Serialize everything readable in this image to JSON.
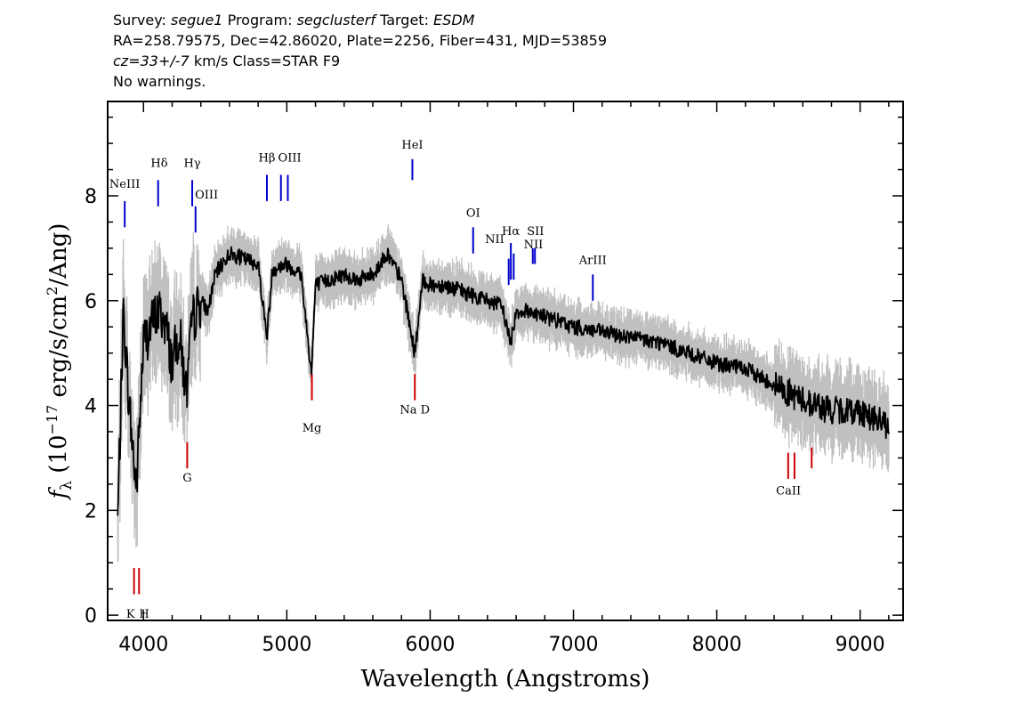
{
  "header": {
    "survey_label": "Survey:",
    "survey": "segue1",
    "program_label": "Program:",
    "program": "segclusterf",
    "target_label": "Target:",
    "target": "ESDM",
    "line2": "RA=258.79575, Dec=42.86020, Plate=2256, Fiber=431, MJD=53859",
    "cz": "cz=33+/-7",
    "line3_rest": "km/s Class=STAR F9",
    "line4": "No warnings."
  },
  "chart_data": {
    "type": "line",
    "xlabel": "Wavelength (Angstroms)",
    "ylabel": "f_λ (10^-17 erg/s/cm^2/Ang)",
    "ylabel_parts": {
      "f": "f",
      "sub": "λ",
      "a": " (10",
      "sup1": "−17",
      "b": " erg/s/cm",
      "sup2": "2",
      "c": "/Ang)"
    },
    "xlim": [
      3750,
      9300
    ],
    "ylim": [
      -0.1,
      9.8
    ],
    "xticks": [
      4000,
      5000,
      6000,
      7000,
      8000,
      9000
    ],
    "yticks": [
      0,
      2,
      4,
      6,
      8
    ],
    "grid": false,
    "colors": {
      "flux": "#000000",
      "error_band": "#c0c0c0",
      "emission": "#0000cc",
      "absorption": "#cc0000"
    },
    "series": [
      {
        "name": "flux",
        "x": [
          3820,
          3860,
          3900,
          3950,
          4000,
          4050,
          4100,
          4150,
          4200,
          4250,
          4300,
          4340,
          4400,
          4450,
          4500,
          4600,
          4700,
          4800,
          4861,
          4900,
          5000,
          5100,
          5172,
          5200,
          5300,
          5400,
          5500,
          5600,
          5700,
          5800,
          5893,
          5950,
          6000,
          6100,
          6200,
          6300,
          6400,
          6500,
          6563,
          6600,
          6700,
          6800,
          6900,
          7000,
          7200,
          7400,
          7600,
          7800,
          8000,
          8200,
          8400,
          8600,
          8800,
          9000,
          9200
        ],
        "y": [
          1.8,
          5.8,
          4.0,
          2.4,
          5.2,
          5.5,
          5.8,
          5.6,
          4.8,
          5.4,
          4.2,
          5.6,
          6.0,
          5.8,
          6.5,
          6.9,
          6.8,
          6.7,
          5.3,
          6.6,
          6.7,
          6.5,
          4.6,
          6.3,
          6.4,
          6.5,
          6.4,
          6.5,
          6.9,
          6.4,
          5.0,
          6.4,
          6.3,
          6.3,
          6.2,
          6.1,
          6.0,
          5.9,
          5.2,
          5.8,
          5.8,
          5.7,
          5.6,
          5.5,
          5.4,
          5.3,
          5.2,
          5.0,
          4.8,
          4.7,
          4.4,
          4.1,
          3.9,
          3.9,
          3.6
        ]
      }
    ],
    "emission_lines": [
      {
        "label": "NeIII",
        "wavelength": 3869,
        "y_low": 7.4,
        "y_high": 7.9
      },
      {
        "label": "Hδ",
        "wavelength": 4102,
        "y_low": 7.8,
        "y_high": 8.3
      },
      {
        "label": "Hγ",
        "wavelength": 4340,
        "y_low": 7.8,
        "y_high": 8.3
      },
      {
        "label": "OIII",
        "wavelength": 4363,
        "y_low": 7.3,
        "y_high": 7.8
      },
      {
        "label": "Hβ",
        "wavelength": 4861,
        "y_low": 7.9,
        "y_high": 8.4
      },
      {
        "label": "OIII",
        "wavelength": 4959,
        "y_low": 7.9,
        "y_high": 8.4
      },
      {
        "label": "OIII",
        "wavelength": 5007,
        "y_low": 7.9,
        "y_high": 8.4
      },
      {
        "label": "HeI",
        "wavelength": 5876,
        "y_low": 8.3,
        "y_high": 8.7
      },
      {
        "label": "OI",
        "wavelength": 6300,
        "y_low": 6.9,
        "y_high": 7.4
      },
      {
        "label": "NII",
        "wavelength": 6548,
        "y_low": 6.3,
        "y_high": 6.8
      },
      {
        "label": "Hα",
        "wavelength": 6563,
        "y_low": 6.4,
        "y_high": 7.1
      },
      {
        "label": "NII",
        "wavelength": 6583,
        "y_low": 6.4,
        "y_high": 6.9
      },
      {
        "label": "SII",
        "wavelength": 6716,
        "y_low": 6.7,
        "y_high": 7.0
      },
      {
        "label": "SII",
        "wavelength": 6731,
        "y_low": 6.7,
        "y_high": 7.0
      },
      {
        "label": "ArIII",
        "wavelength": 7135,
        "y_low": 6.0,
        "y_high": 6.5
      }
    ],
    "absorption_lines": [
      {
        "label": "K",
        "wavelength": 3934,
        "y_low": 0.4,
        "y_high": 0.9
      },
      {
        "label": "H",
        "wavelength": 3969,
        "y_low": 0.4,
        "y_high": 0.9
      },
      {
        "label": "G",
        "wavelength": 4305,
        "y_low": 2.8,
        "y_high": 3.3
      },
      {
        "label": "Mg",
        "wavelength": 5175,
        "y_low": 4.1,
        "y_high": 4.6
      },
      {
        "label": "Na",
        "wavelength": 5893,
        "y_low": 4.1,
        "y_high": 4.6
      },
      {
        "label": "CaII",
        "wavelength": 8498,
        "y_low": 2.6,
        "y_high": 3.1
      },
      {
        "label": "CaII",
        "wavelength": 8542,
        "y_low": 2.6,
        "y_high": 3.1
      },
      {
        "label": "CaII",
        "wavelength": 8662,
        "y_low": 2.8,
        "y_high": 3.2
      }
    ],
    "line_labels": [
      {
        "text": "NeIII",
        "kind": "emission",
        "wavelength": 3869,
        "y": 8.15
      },
      {
        "text": "Hδ",
        "kind": "emission",
        "wavelength": 4110,
        "y": 8.55
      },
      {
        "text": "Hγ",
        "kind": "emission",
        "wavelength": 4340,
        "y": 8.55
      },
      {
        "text": "OIII",
        "kind": "emission",
        "wavelength": 4440,
        "y": 7.95
      },
      {
        "text": "Hβ",
        "kind": "emission",
        "wavelength": 4861,
        "y": 8.65
      },
      {
        "text": "OIII",
        "kind": "emission",
        "wavelength": 5020,
        "y": 8.65
      },
      {
        "text": "HeI",
        "kind": "emission",
        "wavelength": 5876,
        "y": 8.9
      },
      {
        "text": "OI",
        "kind": "emission",
        "wavelength": 6300,
        "y": 7.6
      },
      {
        "text": "NII",
        "kind": "emission",
        "wavelength": 6450,
        "y": 7.1
      },
      {
        "text": "Hα",
        "kind": "emission",
        "wavelength": 6563,
        "y": 7.25
      },
      {
        "text": "SII",
        "kind": "emission",
        "wavelength": 6735,
        "y": 7.25
      },
      {
        "text": "NII",
        "kind": "emission",
        "wavelength": 6720,
        "y": 7.0
      },
      {
        "text": "ArIII",
        "kind": "emission",
        "wavelength": 7135,
        "y": 6.7
      },
      {
        "text": "K",
        "kind": "absorption",
        "wavelength": 3910,
        "y": -0.05
      },
      {
        "text": "H",
        "kind": "absorption",
        "wavelength": 4005,
        "y": -0.05
      },
      {
        "text": "G",
        "kind": "absorption",
        "wavelength": 4305,
        "y": 2.55
      },
      {
        "text": "Mg",
        "kind": "absorption",
        "wavelength": 5175,
        "y": 3.5
      },
      {
        "text": "Na D",
        "kind": "absorption",
        "wavelength": 5893,
        "y": 3.85
      },
      {
        "text": "CaII",
        "kind": "absorption",
        "wavelength": 8500,
        "y": 2.3
      }
    ]
  }
}
